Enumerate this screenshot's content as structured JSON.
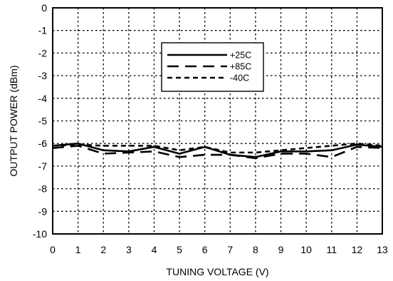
{
  "chart_data": {
    "type": "line",
    "title": "",
    "xlabel": "TUNING VOLTAGE (V)",
    "ylabel": "OUTPUT POWER (dBm)",
    "xlim": [
      0,
      13
    ],
    "ylim": [
      -10,
      0
    ],
    "x_ticks": [
      "0",
      "1",
      "2",
      "3",
      "4",
      "5",
      "6",
      "7",
      "8",
      "9",
      "10",
      "11",
      "12",
      "13"
    ],
    "y_ticks": [
      "0",
      "-1",
      "-2",
      "-3",
      "-4",
      "-5",
      "-6",
      "-7",
      "-8",
      "-9",
      "-10"
    ],
    "grid": true,
    "legend_position": "upper-center",
    "x": [
      0,
      1,
      2,
      3,
      4,
      5,
      6,
      7,
      8,
      9,
      10,
      11,
      12,
      13
    ],
    "series": [
      {
        "name": "+25C",
        "style": "solid",
        "values": [
          -6.1,
          -6.0,
          -6.3,
          -6.35,
          -6.15,
          -6.45,
          -6.15,
          -6.5,
          -6.6,
          -6.35,
          -6.35,
          -6.3,
          -6.05,
          -6.15
        ]
      },
      {
        "name": "+85C",
        "style": "long-dash",
        "values": [
          -6.2,
          -6.1,
          -6.45,
          -6.4,
          -6.35,
          -6.6,
          -6.5,
          -6.5,
          -6.65,
          -6.45,
          -6.45,
          -6.6,
          -6.15,
          -6.2
        ]
      },
      {
        "name": "-40C",
        "style": "short-dash",
        "values": [
          -6.1,
          -6.05,
          -6.1,
          -6.1,
          -6.1,
          -6.3,
          -6.15,
          -6.4,
          -6.4,
          -6.3,
          -6.2,
          -6.1,
          -6.0,
          -6.1
        ]
      }
    ]
  }
}
